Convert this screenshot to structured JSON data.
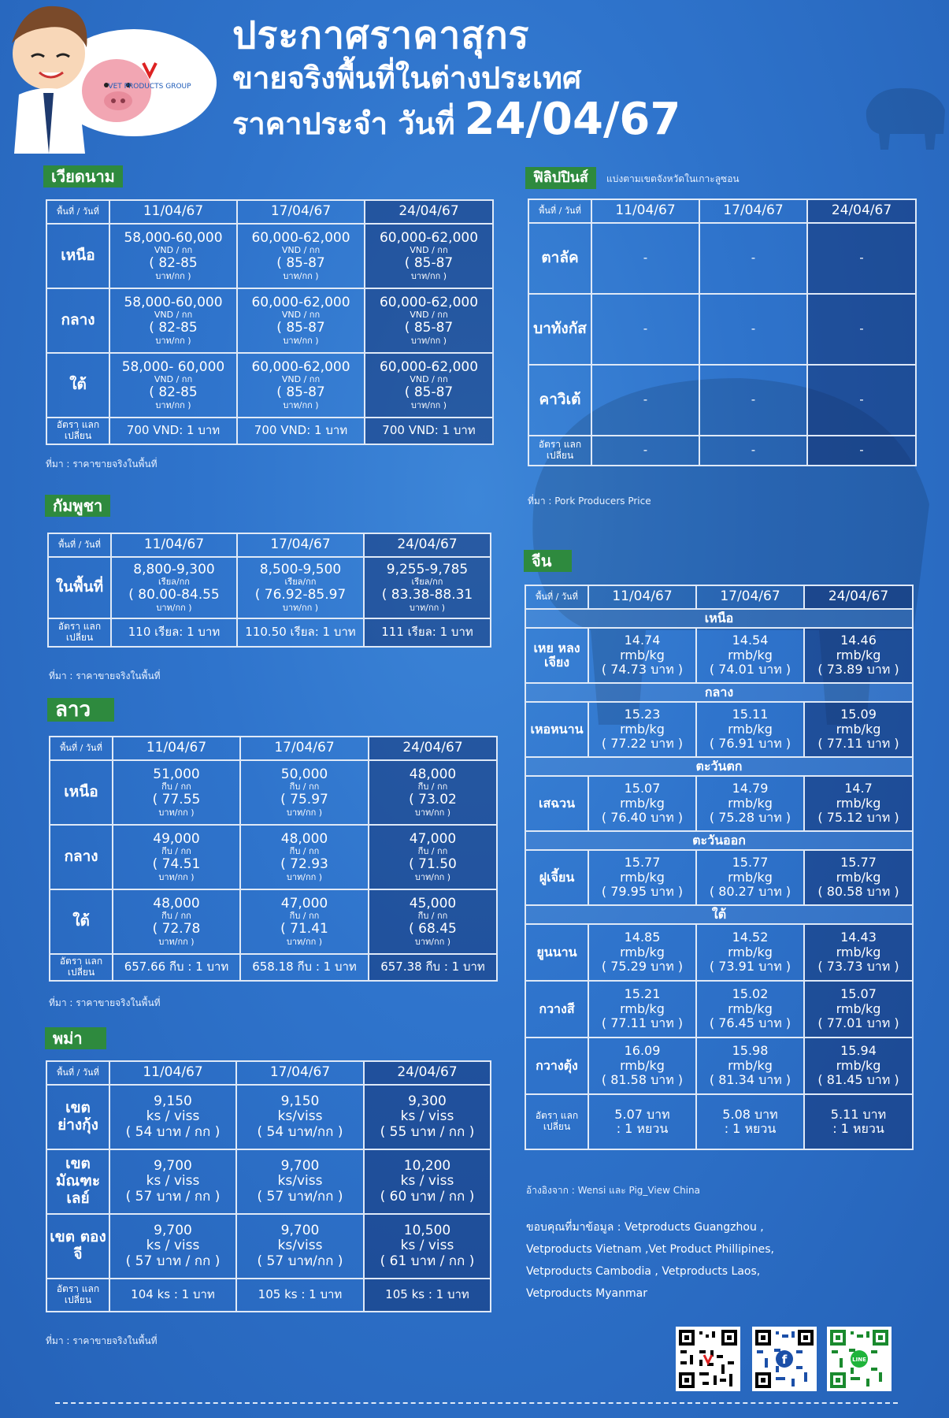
{
  "header": {
    "line1": "ประกาศราคาสุกร",
    "line2": "ขายจริงพื้นที่ในต่างประเทศ",
    "line3_prefix": "ราคาประจำ วันที่",
    "line3_date": "24/04/67",
    "logo_text": "VET PRODUCTS GROUP"
  },
  "corner_label": "พื้นที่ / วันที่",
  "dates": [
    "11/04/67",
    "17/04/67",
    "24/04/67"
  ],
  "exchange_label": "อัตรา แลกเปลี่ยน",
  "vietnam": {
    "label": "เวียดนาม",
    "rows": [
      {
        "region": "เหนือ",
        "cells": [
          {
            "price": "58,000-60,000",
            "unit": "VND / กก",
            "baht": "( 82-85",
            "baht_unit": "บาท/กก )"
          },
          {
            "price": "60,000-62,000",
            "unit": "VND / กก",
            "baht": "( 85-87",
            "baht_unit": "บาท/กก )"
          },
          {
            "price": "60,000-62,000",
            "unit": "VND / กก",
            "baht": "( 85-87",
            "baht_unit": "บาท/กก )"
          }
        ]
      },
      {
        "region": "กลาง",
        "cells": [
          {
            "price": "58,000-60,000",
            "unit": "VND / กก",
            "baht": "( 82-85",
            "baht_unit": "บาท/กก )"
          },
          {
            "price": "60,000-62,000",
            "unit": "VND / กก",
            "baht": "( 85-87",
            "baht_unit": "บาท/กก )"
          },
          {
            "price": "60,000-62,000",
            "unit": "VND / กก",
            "baht": "( 85-87",
            "baht_unit": "บาท/กก )"
          }
        ]
      },
      {
        "region": "ใต้",
        "cells": [
          {
            "price": "58,000- 60,000",
            "unit": "VND / กก",
            "baht": "( 82-85",
            "baht_unit": "บาท/กก )"
          },
          {
            "price": "60,000-62,000",
            "unit": "VND / กก",
            "baht": "( 85-87",
            "baht_unit": "บาท/กก )"
          },
          {
            "price": "60,000-62,000",
            "unit": "VND / กก",
            "baht": "( 85-87",
            "baht_unit": "บาท/กก )"
          }
        ]
      }
    ],
    "exchange": [
      "700 VND: 1 บาท",
      "700 VND: 1 บาท",
      "700 VND: 1 บาท"
    ],
    "source": "ที่มา : ราคาขายจริงในพื้นที่"
  },
  "cambodia": {
    "label": "กัมพูชา",
    "rows": [
      {
        "region": "ในพื้นที่",
        "cells": [
          {
            "price": "8,800-9,300",
            "unit": "เรียล/กก",
            "baht": "( 80.00-84.55",
            "baht_unit": "บาท/กก )"
          },
          {
            "price": "8,500-9,500",
            "unit": "เรียล/กก",
            "baht": "( 76.92-85.97",
            "baht_unit": "บาท/กก )"
          },
          {
            "price": "9,255-9,785",
            "unit": "เรียล/กก",
            "baht": "( 83.38-88.31",
            "baht_unit": "บาท/กก )"
          }
        ]
      }
    ],
    "exchange": [
      "110 เรียล: 1 บาท",
      "110.50 เรียล: 1 บาท",
      "111 เรียล: 1 บาท"
    ],
    "source": "ที่มา : ราคาขายจริงในพื้นที่"
  },
  "laos": {
    "label": "ลาว",
    "rows": [
      {
        "region": "เหนือ",
        "cells": [
          {
            "price": "51,000",
            "unit": "กีบ / กก",
            "baht": "( 77.55",
            "baht_unit": "บาท/กก )"
          },
          {
            "price": "50,000",
            "unit": "กีบ / กก",
            "baht": "( 75.97",
            "baht_unit": "บาท/กก )"
          },
          {
            "price": "48,000",
            "unit": "กีบ / กก",
            "baht": "( 73.02",
            "baht_unit": "บาท/กก )"
          }
        ]
      },
      {
        "region": "กลาง",
        "cells": [
          {
            "price": "49,000",
            "unit": "กีบ / กก",
            "baht": "( 74.51",
            "baht_unit": "บาท/กก )"
          },
          {
            "price": "48,000",
            "unit": "กีบ / กก",
            "baht": "( 72.93",
            "baht_unit": "บาท/กก )"
          },
          {
            "price": "47,000",
            "unit": "กีบ / กก",
            "baht": "( 71.50",
            "baht_unit": "บาท/กก )"
          }
        ]
      },
      {
        "region": "ใต้",
        "cells": [
          {
            "price": "48,000",
            "unit": "กีบ / กก",
            "baht": "( 72.78",
            "baht_unit": "บาท/กก )"
          },
          {
            "price": "47,000",
            "unit": "กีบ / กก",
            "baht": "( 71.41",
            "baht_unit": "บาท/กก )"
          },
          {
            "price": "45,000",
            "unit": "กีบ / กก",
            "baht": "( 68.45",
            "baht_unit": "บาท/กก )"
          }
        ]
      }
    ],
    "exchange": [
      "657.66 กีบ : 1 บาท",
      "658.18 กีบ : 1 บาท",
      "657.38 กีบ : 1 บาท"
    ],
    "source": "ที่มา : ราคาขายจริงในพื้นที่"
  },
  "myanmar": {
    "label": "พม่า",
    "rows": [
      {
        "region": "เขต ย่างกุ้ง",
        "cells": [
          {
            "price": "9,150",
            "unit": "ks / viss",
            "baht": "( 54 บาท / กก )"
          },
          {
            "price": "9,150",
            "unit": "ks/viss",
            "baht": "( 54 บาท/กก )"
          },
          {
            "price": "9,300",
            "unit": "ks / viss",
            "baht": "( 55 บาท / กก )"
          }
        ]
      },
      {
        "region": "เขต มัณฑะเลย์",
        "cells": [
          {
            "price": "9,700",
            "unit": "ks / viss",
            "baht": "( 57 บาท / กก )"
          },
          {
            "price": "9,700",
            "unit": "ks/viss",
            "baht": "( 57 บาท/กก )"
          },
          {
            "price": "10,200",
            "unit": "ks / viss",
            "baht": "( 60 บาท / กก )"
          }
        ]
      },
      {
        "region": "เขต ตองจี",
        "cells": [
          {
            "price": "9,700",
            "unit": "ks / viss",
            "baht": "( 57 บาท / กก )"
          },
          {
            "price": "9,700",
            "unit": "ks/viss",
            "baht": "( 57 บาท/กก )"
          },
          {
            "price": "10,500",
            "unit": "ks / viss",
            "baht": "( 61 บาท / กก )"
          }
        ]
      }
    ],
    "exchange": [
      "104 ks : 1 บาท",
      "105 ks : 1 บาท",
      "105 ks : 1 บาท"
    ],
    "source": "ที่มา : ราคาขายจริงในพื้นที่"
  },
  "philippines": {
    "label": "ฟิลิปปินส์",
    "subtitle": "แบ่งตามเขตจังหวัดในเกาะลูซอน",
    "rows": [
      {
        "region": "ตาลัค",
        "cells": [
          "-",
          "-",
          "-"
        ]
      },
      {
        "region": "บาทังกัส",
        "cells": [
          "-",
          "-",
          "-"
        ]
      },
      {
        "region": "คาวิเต้",
        "cells": [
          "-",
          "-",
          "-"
        ]
      }
    ],
    "exchange": [
      "-",
      "-",
      "-"
    ],
    "source": "ที่มา : Pork Producers Price"
  },
  "china": {
    "label": "จีน",
    "groups": [
      {
        "zone": "เหนือ",
        "rows": [
          {
            "province": "เหย หลงเจียง",
            "cells": [
              {
                "price": "14.74",
                "unit": "rmb/kg",
                "baht": "( 74.73 บาท )"
              },
              {
                "price": "14.54",
                "unit": "rmb/kg",
                "baht": "( 74.01 บาท )"
              },
              {
                "price": "14.46",
                "unit": "rmb/kg",
                "baht": "( 73.89 บาท )"
              }
            ]
          }
        ]
      },
      {
        "zone": "กลาง",
        "rows": [
          {
            "province": "เหอหนาน",
            "cells": [
              {
                "price": "15.23",
                "unit": "rmb/kg",
                "baht": "( 77.22 บาท )"
              },
              {
                "price": "15.11",
                "unit": "rmb/kg",
                "baht": "( 76.91 บาท )"
              },
              {
                "price": "15.09",
                "unit": "rmb/kg",
                "baht": "( 77.11 บาท )"
              }
            ]
          }
        ]
      },
      {
        "zone": "ตะวันตก",
        "rows": [
          {
            "province": "เสฉวน",
            "cells": [
              {
                "price": "15.07",
                "unit": "rmb/kg",
                "baht": "( 76.40 บาท )"
              },
              {
                "price": "14.79",
                "unit": "rmb/kg",
                "baht": "( 75.28 บาท )"
              },
              {
                "price": "14.7",
                "unit": "rmb/kg",
                "baht": "( 75.12 บาท )"
              }
            ]
          }
        ]
      },
      {
        "zone": "ตะวันออก",
        "rows": [
          {
            "province": "ฝูเจี้ยน",
            "cells": [
              {
                "price": "15.77",
                "unit": "rmb/kg",
                "baht": "( 79.95 บาท )"
              },
              {
                "price": "15.77",
                "unit": "rmb/kg",
                "baht": "( 80.27 บาท )"
              },
              {
                "price": "15.77",
                "unit": "rmb/kg",
                "baht": "( 80.58 บาท )"
              }
            ]
          }
        ]
      },
      {
        "zone": "ใต้",
        "rows": [
          {
            "province": "ยูนนาน",
            "cells": [
              {
                "price": "14.85",
                "unit": "rmb/kg",
                "baht": "( 75.29 บาท )"
              },
              {
                "price": "14.52",
                "unit": "rmb/kg",
                "baht": "( 73.91 บาท )"
              },
              {
                "price": "14.43",
                "unit": "rmb/kg",
                "baht": "( 73.73 บาท )"
              }
            ]
          },
          {
            "province": "กวางสี",
            "cells": [
              {
                "price": "15.21",
                "unit": "rmb/kg",
                "baht": "( 77.11 บาท )"
              },
              {
                "price": "15.02",
                "unit": "rmb/kg",
                "baht": "( 76.45 บาท )"
              },
              {
                "price": "15.07",
                "unit": "rmb/kg",
                "baht": "( 77.01 บาท )"
              }
            ]
          },
          {
            "province": "กวางตุ้ง",
            "cells": [
              {
                "price": "16.09",
                "unit": "rmb/kg",
                "baht": "( 81.58 บาท )"
              },
              {
                "price": "15.98",
                "unit": "rmb/kg",
                "baht": "( 81.34 บาท )"
              },
              {
                "price": "15.94",
                "unit": "rmb/kg",
                "baht": "( 81.45 บาท )"
              }
            ]
          }
        ]
      }
    ],
    "exchange": [
      {
        "a": "5.07 บาท",
        "b": ": 1 หยวน"
      },
      {
        "a": "5.08 บาท",
        "b": ": 1 หยวน"
      },
      {
        "a": "5.11 บาท",
        "b": ": 1 หยวน"
      }
    ],
    "source": "อ้างอิงจาก : Wensi และ Pig_View China"
  },
  "credits": [
    "ขอบคุณที่มาข้อมูล : Vetproducts Guangzhou ,",
    "Vetproducts Vietnam ,Vet Product Phillipines,",
    "Vetproducts Cambodia , Vetproducts Laos,",
    "Vetproducts Myanmar"
  ],
  "colors": {
    "background": "#2f74cc",
    "label_green": "#2e8a3e",
    "grid_line": "#dfe9f7"
  }
}
